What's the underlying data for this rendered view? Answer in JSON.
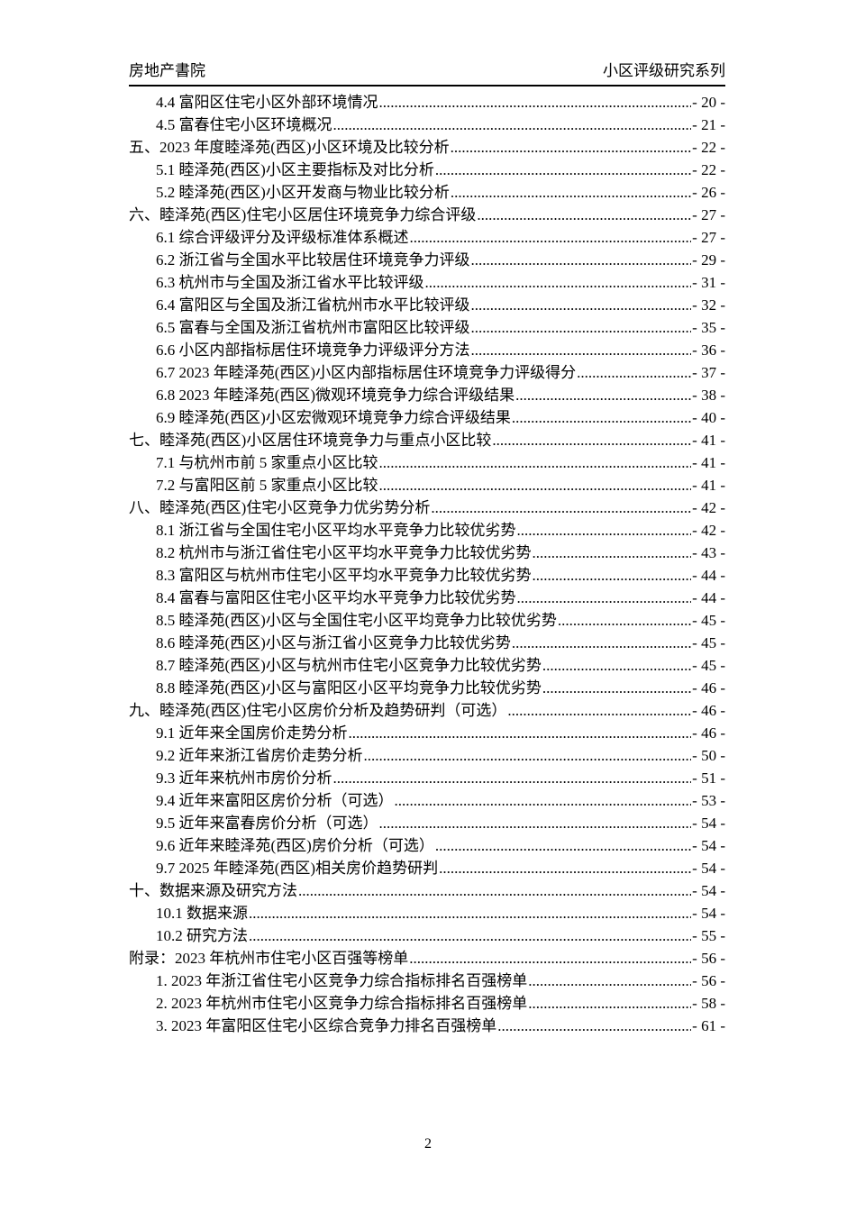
{
  "page": {
    "header": {
      "left": "房地产書院",
      "right": "小区评级研究系列"
    },
    "footer": {
      "page_number": "2"
    }
  },
  "toc": {
    "entries": [
      {
        "level": 2,
        "label": "4.4 富阳区住宅小区外部环境情况",
        "page": "- 20 -"
      },
      {
        "level": 2,
        "label": "4.5 富春住宅小区环境概况",
        "page": "- 21 -"
      },
      {
        "level": 1,
        "label": "五、2023 年度睦泽苑(西区)小区环境及比较分析",
        "page": "- 22 -"
      },
      {
        "level": 2,
        "label": "5.1 睦泽苑(西区)小区主要指标及对比分析",
        "page": "- 22 -"
      },
      {
        "level": 2,
        "label": "5.2 睦泽苑(西区)小区开发商与物业比较分析",
        "page": "- 26 -"
      },
      {
        "level": 1,
        "label": "六、睦泽苑(西区)住宅小区居住环境竞争力综合评级",
        "page": "- 27 -"
      },
      {
        "level": 2,
        "label": "6.1 综合评级评分及评级标准体系概述",
        "page": "- 27 -"
      },
      {
        "level": 2,
        "label": "6.2 浙江省与全国水平比较居住环境竞争力评级",
        "page": "- 29 -"
      },
      {
        "level": 2,
        "label": "6.3 杭州市与全国及浙江省水平比较评级",
        "page": "- 31 -"
      },
      {
        "level": 2,
        "label": "6.4 富阳区与全国及浙江省杭州市水平比较评级",
        "page": "- 32 -"
      },
      {
        "level": 2,
        "label": "6.5 富春与全国及浙江省杭州市富阳区比较评级",
        "page": "- 35 -"
      },
      {
        "level": 2,
        "label": "6.6 小区内部指标居住环境竞争力评级评分方法",
        "page": "- 36 -"
      },
      {
        "level": 2,
        "label": "6.7 2023 年睦泽苑(西区)小区内部指标居住环境竞争力评级得分",
        "page": "- 37 -"
      },
      {
        "level": 2,
        "label": "6.8 2023 年睦泽苑(西区)微观环境竞争力综合评级结果",
        "page": "- 38 -"
      },
      {
        "level": 2,
        "label": "6.9 睦泽苑(西区)小区宏微观环境竞争力综合评级结果",
        "page": "- 40 -"
      },
      {
        "level": 1,
        "label": "七、睦泽苑(西区)小区居住环境竞争力与重点小区比较",
        "page": "- 41 -"
      },
      {
        "level": 2,
        "label": "7.1 与杭州市前 5 家重点小区比较",
        "page": "- 41 -"
      },
      {
        "level": 2,
        "label": "7.2 与富阳区前 5 家重点小区比较",
        "page": "- 41 -"
      },
      {
        "level": 1,
        "label": "八、睦泽苑(西区)住宅小区竞争力优劣势分析",
        "page": "- 42 -"
      },
      {
        "level": 2,
        "label": "8.1 浙江省与全国住宅小区平均水平竞争力比较优劣势",
        "page": "- 42 -"
      },
      {
        "level": 2,
        "label": "8.2 杭州市与浙江省住宅小区平均水平竞争力比较优劣势",
        "page": "- 43 -"
      },
      {
        "level": 2,
        "label": "8.3 富阳区与杭州市住宅小区平均水平竞争力比较优劣势",
        "page": "- 44 -"
      },
      {
        "level": 2,
        "label": "8.4 富春与富阳区住宅小区平均水平竞争力比较优劣势",
        "page": "- 44 -"
      },
      {
        "level": 2,
        "label": "8.5 睦泽苑(西区)小区与全国住宅小区平均竞争力比较优劣势",
        "page": "- 45 -"
      },
      {
        "level": 2,
        "label": "8.6 睦泽苑(西区)小区与浙江省小区竞争力比较优劣势",
        "page": "- 45 -"
      },
      {
        "level": 2,
        "label": "8.7 睦泽苑(西区)小区与杭州市住宅小区竞争力比较优劣势",
        "page": "- 45 -"
      },
      {
        "level": 2,
        "label": "8.8 睦泽苑(西区)小区与富阳区小区平均竞争力比较优劣势",
        "page": "- 46 -"
      },
      {
        "level": 1,
        "label": "九、睦泽苑(西区)住宅小区房价分析及趋势研判（可选） ",
        "page": "- 46 -"
      },
      {
        "level": 2,
        "label": "9.1 近年来全国房价走势分析",
        "page": "- 46 -"
      },
      {
        "level": 2,
        "label": "9.2 近年来浙江省房价走势分析",
        "page": "- 50 -"
      },
      {
        "level": 2,
        "label": "9.3 近年来杭州市房价分析",
        "page": "- 51 -"
      },
      {
        "level": 2,
        "label": "9.4 近年来富阳区房价分析（可选） ",
        "page": "- 53 -"
      },
      {
        "level": 2,
        "label": "9.5 近年来富春房价分析（可选） ",
        "page": "- 54 -"
      },
      {
        "level": 2,
        "label": "9.6 近年来睦泽苑(西区)房价分析（可选） ",
        "page": "- 54 -"
      },
      {
        "level": 2,
        "label": "9.7 2025 年睦泽苑(西区)相关房价趋势研判",
        "page": "- 54 -"
      },
      {
        "level": 1,
        "label": "十、数据来源及研究方法",
        "page": "- 54 -"
      },
      {
        "level": 2,
        "label": "10.1 数据来源",
        "page": "- 54 -"
      },
      {
        "level": 2,
        "label": "10.2 研究方法",
        "page": "- 55 -"
      },
      {
        "level": 1,
        "label": "附录：2023 年杭州市住宅小区百强等榜单",
        "page": "- 56 -"
      },
      {
        "level": 2,
        "label": "1. 2023 年浙江省住宅小区竞争力综合指标排名百强榜单",
        "page": "- 56 -"
      },
      {
        "level": 2,
        "label": "2. 2023 年杭州市住宅小区竞争力综合指标排名百强榜单",
        "page": "- 58 -"
      },
      {
        "level": 2,
        "label": "3. 2023 年富阳区住宅小区综合竞争力排名百强榜单",
        "page": "- 61 -"
      }
    ]
  }
}
